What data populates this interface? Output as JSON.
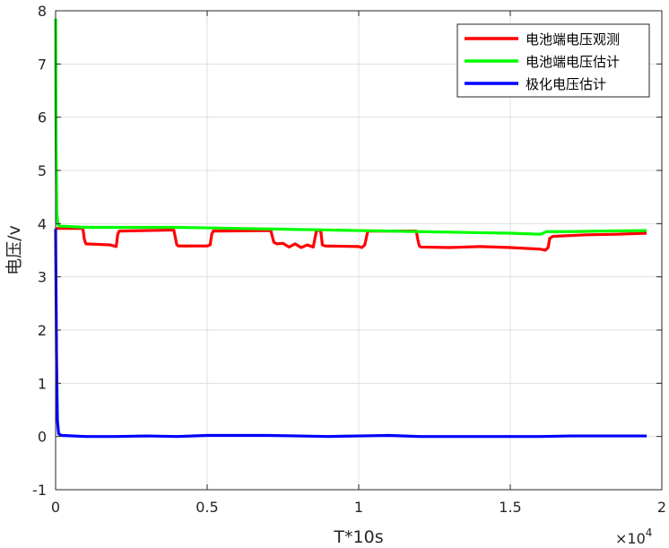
{
  "chart_data": {
    "type": "line",
    "title": "",
    "xlabel": "T*10s",
    "ylabel": "电压/v",
    "x_exponent_label": "×10",
    "x_exponent_power": "4",
    "xlim": [
      0,
      20000
    ],
    "ylim": [
      -1,
      8
    ],
    "xticks": [
      0,
      5000,
      10000,
      15000,
      20000
    ],
    "xtick_labels": [
      "0",
      "0.5",
      "1",
      "1.5",
      "2"
    ],
    "yticks": [
      -1,
      0,
      1,
      2,
      3,
      4,
      5,
      6,
      7,
      8
    ],
    "ytick_labels": [
      "-1",
      "0",
      "1",
      "2",
      "3",
      "4",
      "5",
      "6",
      "7",
      "8"
    ],
    "grid": true,
    "legend_position": "top-right",
    "series": [
      {
        "name": "电池端电压观测",
        "color": "#ff0000",
        "x": [
          0,
          900,
          950,
          1000,
          1800,
          2000,
          2050,
          2100,
          3900,
          4000,
          4050,
          4100,
          5000,
          5100,
          5150,
          5200,
          7100,
          7200,
          7300,
          7500,
          7700,
          7900,
          8100,
          8300,
          8500,
          8600,
          8650,
          8750,
          8800,
          8900,
          10000,
          10100,
          10200,
          10300,
          11900,
          11950,
          12000,
          12050,
          13000,
          14000,
          15000,
          16000,
          16150,
          16250,
          16300,
          16400,
          17500,
          18500,
          19500
        ],
        "y": [
          3.91,
          3.91,
          3.7,
          3.62,
          3.6,
          3.57,
          3.8,
          3.86,
          3.88,
          3.6,
          3.58,
          3.58,
          3.58,
          3.6,
          3.8,
          3.86,
          3.87,
          3.65,
          3.62,
          3.63,
          3.56,
          3.62,
          3.55,
          3.6,
          3.56,
          3.85,
          3.88,
          3.86,
          3.6,
          3.58,
          3.57,
          3.55,
          3.6,
          3.86,
          3.86,
          3.7,
          3.58,
          3.56,
          3.55,
          3.57,
          3.55,
          3.52,
          3.5,
          3.55,
          3.72,
          3.76,
          3.79,
          3.8,
          3.82
        ]
      },
      {
        "name": "电池端电压估计",
        "color": "#00ff00",
        "x": [
          0,
          15,
          40,
          80,
          150,
          300,
          1000,
          2000,
          3000,
          4000,
          5000,
          6000,
          7000,
          8000,
          9000,
          10000,
          11000,
          12000,
          13000,
          14000,
          15000,
          16000,
          16200,
          17000,
          18000,
          19500
        ],
        "y": [
          7.85,
          5.5,
          4.2,
          3.98,
          3.95,
          3.95,
          3.93,
          3.93,
          3.93,
          3.93,
          3.92,
          3.91,
          3.9,
          3.89,
          3.88,
          3.87,
          3.86,
          3.85,
          3.84,
          3.83,
          3.82,
          3.8,
          3.85,
          3.85,
          3.86,
          3.87
        ]
      },
      {
        "name": "极化电压估计",
        "color": "#0000ff",
        "x": [
          0,
          30,
          60,
          100,
          200,
          1000,
          2000,
          3000,
          4000,
          5000,
          6000,
          7000,
          8000,
          9000,
          10000,
          11000,
          12000,
          13000,
          14000,
          15000,
          16000,
          17000,
          18000,
          19500
        ],
        "y": [
          3.9,
          1.5,
          0.3,
          0.05,
          0.02,
          0.0,
          0.0,
          0.01,
          0.0,
          0.02,
          0.02,
          0.02,
          0.01,
          0.0,
          0.01,
          0.02,
          0.0,
          0.0,
          0.0,
          0.0,
          0.0,
          0.01,
          0.01,
          0.01
        ]
      }
    ]
  }
}
